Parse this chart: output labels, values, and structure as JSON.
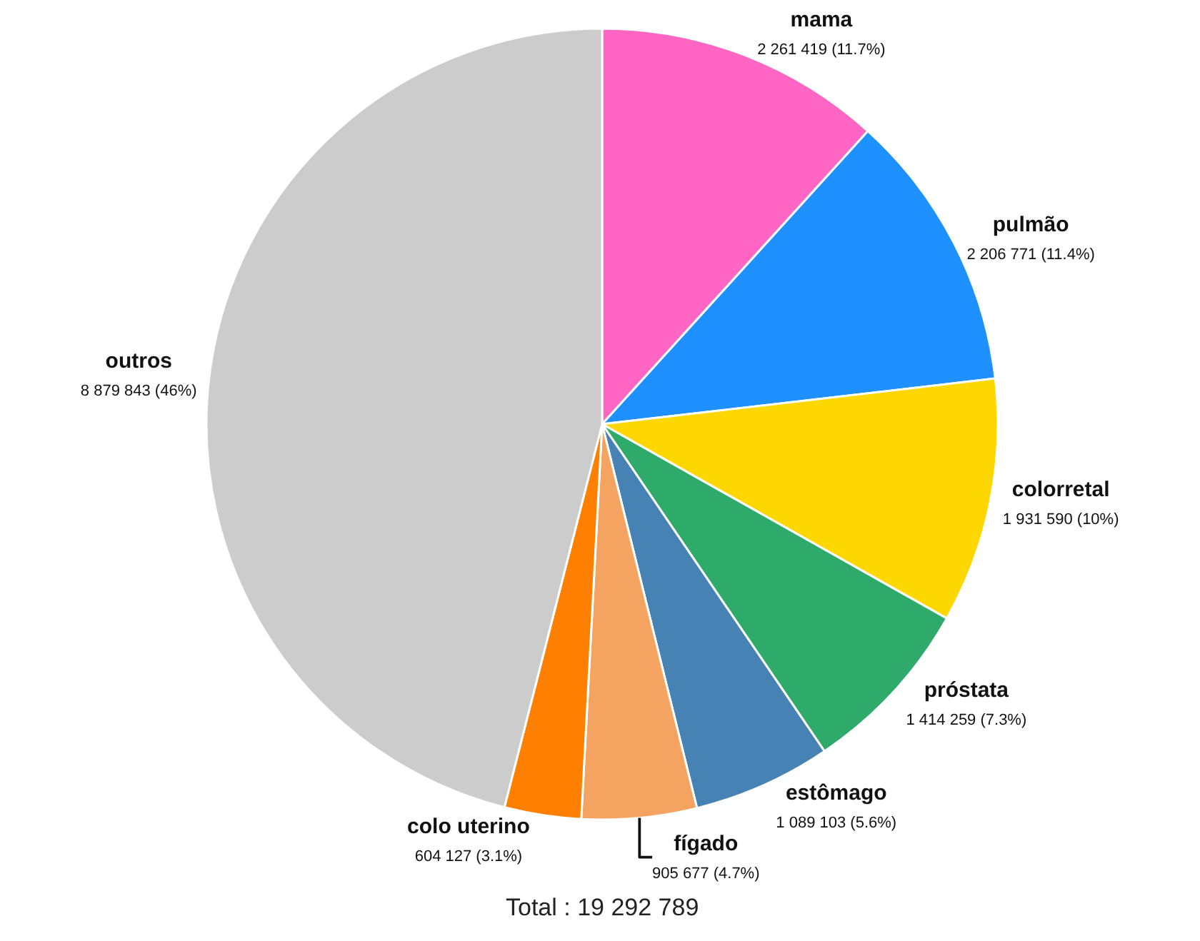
{
  "chart_data": {
    "type": "pie",
    "categories": [
      "mama",
      "pulmão",
      "colorretal",
      "próstata",
      "estômago",
      "fígado",
      "colo uterino",
      "outros"
    ],
    "values": [
      2261419,
      2206771,
      1931590,
      1414259,
      1089103,
      905677,
      604127,
      8879843
    ],
    "colors": [
      "#ff66c4",
      "#1e90ff",
      "#ffd700",
      "#2eaa6a",
      "#4682b4",
      "#f4a460",
      "#ff7f00",
      "#cccccc"
    ],
    "value_labels": [
      "2 261 419 (11.7%)",
      "2 206 771 (11.4%)",
      "1 931 590 (10%)",
      "1 414 259 (7.3%)",
      "1 089 103 (5.6%)",
      "905 677 (4.7%)",
      "604 127 (3.1%)",
      "8 879 843 (46%)"
    ],
    "annotations": [
      "Total : 19 292 789"
    ]
  }
}
